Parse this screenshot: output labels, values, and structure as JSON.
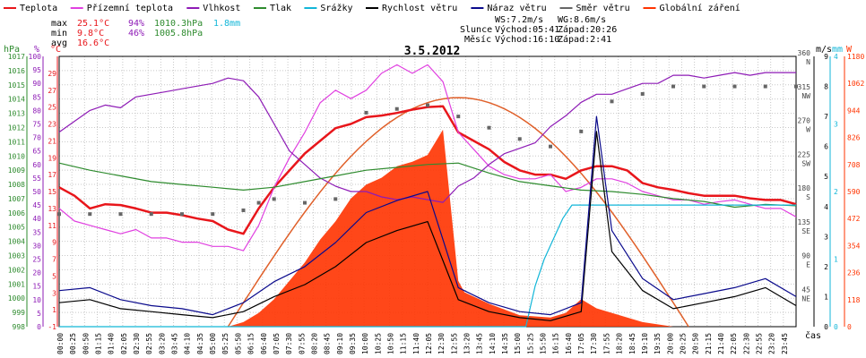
{
  "legend": [
    {
      "label": "Teplota",
      "color": "#e8161b"
    },
    {
      "label": "Přízemní teplota",
      "color": "#e040e0"
    },
    {
      "label": "Vlhkost",
      "color": "#8e1bb6"
    },
    {
      "label": "Tlak",
      "color": "#2e8b2e"
    },
    {
      "label": "Srážky",
      "color": "#12b6d8"
    },
    {
      "label": "Rychlost větru",
      "color": "#000000"
    },
    {
      "label": "Náraz větru",
      "color": "#0a0a8c"
    },
    {
      "label": "Směr větru",
      "color": "#666666"
    },
    {
      "label": "Globální záření",
      "color": "#ff3300"
    }
  ],
  "stats": {
    "max_label": "max",
    "max_temp": "25.1°C",
    "max_hum": "94%",
    "max_press": "1010.3hPa",
    "max_rain": "1.8mm",
    "min_label": "min",
    "min_temp": "9.8°C",
    "min_hum": "46%",
    "min_press": "1005.8hPa",
    "avg_label": "avg",
    "avg_temp": "16.6°C"
  },
  "wind_info": {
    "ws": "WS:7.2m/s",
    "wg": "WG:8.6m/s"
  },
  "sun": {
    "label": "Slunce",
    "rise": "Východ:05:41",
    "set": "Západ:20:26"
  },
  "moon": {
    "label": "Měsíc",
    "rise": "Východ:16:10",
    "set": "Západ:2:41"
  },
  "axis_units": {
    "hpa": "hPa",
    "pct": "%",
    "celsius": "°C",
    "ms": "m/s",
    "mm": "mm",
    "w": "W",
    "time": "čas"
  },
  "chart_data": {
    "type": "line",
    "title": "3.5.2012",
    "x_unit": "time of day (hours)",
    "x_range": [
      0,
      24
    ],
    "x_tick_labels": [
      "00:00",
      "00:25",
      "00:50",
      "01:15",
      "01:40",
      "02:05",
      "02:30",
      "02:55",
      "03:20",
      "03:45",
      "04:10",
      "04:35",
      "05:00",
      "05:25",
      "05:50",
      "06:15",
      "06:40",
      "07:05",
      "07:30",
      "07:55",
      "08:20",
      "08:45",
      "09:10",
      "09:35",
      "10:00",
      "10:25",
      "10:50",
      "11:15",
      "11:40",
      "12:05",
      "12:30",
      "12:55",
      "13:20",
      "13:45",
      "14:10",
      "14:35",
      "15:00",
      "15:25",
      "15:50",
      "16:15",
      "16:40",
      "17:05",
      "17:30",
      "17:55",
      "18:20",
      "18:45",
      "19:10",
      "19:35",
      "20:00",
      "20:25",
      "20:50",
      "21:15",
      "21:40",
      "22:05",
      "22:30",
      "22:55",
      "23:20",
      "23:45"
    ],
    "axes": {
      "pressure_hpa": {
        "min": 998,
        "max": 1017,
        "ticks": [
          998,
          999,
          1000,
          1001,
          1002,
          1003,
          1004,
          1005,
          1006,
          1007,
          1008,
          1009,
          1010,
          1011,
          1012,
          1013,
          1014,
          1015,
          1016,
          1017
        ]
      },
      "humidity_pct": {
        "min": 0,
        "max": 100,
        "ticks": [
          0,
          5,
          10,
          15,
          20,
          25,
          30,
          35,
          40,
          45,
          50,
          55,
          60,
          65,
          70,
          75,
          80,
          85,
          90,
          95,
          100
        ]
      },
      "temperature_c": {
        "min": -1,
        "max": 31,
        "ticks": [
          -1,
          1,
          3,
          5,
          7,
          9,
          11,
          13,
          15,
          17,
          19,
          21,
          23,
          25,
          27,
          29
        ]
      },
      "wind_dir_deg": {
        "ticks": [
          0,
          45,
          90,
          135,
          180,
          225,
          270,
          315,
          360
        ],
        "labels": [
          "",
          "NE",
          "E",
          "SE",
          "S",
          "SW",
          "W",
          "NW",
          "N"
        ]
      },
      "wind_ms": {
        "min": 0,
        "max": 9,
        "ticks": [
          0,
          1,
          2,
          3,
          4,
          5,
          6,
          7,
          8,
          9
        ]
      },
      "rain_mm": {
        "min": 0,
        "max": 4,
        "ticks": [
          0,
          1,
          2,
          3,
          4
        ]
      },
      "radiation_w": {
        "min": 0,
        "max": 1180,
        "ticks": [
          0,
          118,
          236,
          354,
          472,
          590,
          708,
          826,
          944,
          1062,
          1180
        ]
      }
    },
    "series": [
      {
        "name": "Teplota",
        "axis": "temperature_c",
        "color": "#e8161b",
        "x": [
          0,
          0.5,
          1,
          1.5,
          2,
          2.5,
          3,
          3.5,
          4,
          4.5,
          5,
          5.5,
          6,
          6.5,
          7,
          7.5,
          8,
          8.5,
          9,
          9.5,
          10,
          10.5,
          11,
          11.5,
          12,
          12.5,
          13,
          13.5,
          14,
          14.5,
          15,
          15.5,
          16,
          16.5,
          17,
          17.5,
          18,
          18.5,
          19,
          19.5,
          20,
          20.5,
          21,
          21.5,
          22,
          22.5,
          23,
          23.5,
          24
        ],
        "y": [
          15.5,
          14.5,
          13,
          13.5,
          13.4,
          13,
          12.5,
          12.5,
          12.2,
          11.8,
          11.5,
          10.5,
          10,
          13,
          15.5,
          17.5,
          19.5,
          21,
          22.5,
          23,
          23.8,
          24,
          24.3,
          24.7,
          25,
          25.1,
          22,
          21,
          20,
          18.5,
          17.5,
          17,
          17,
          16.5,
          17.5,
          18,
          18,
          17.5,
          16,
          15.5,
          15.2,
          14.8,
          14.5,
          14.5,
          14.5,
          14.2,
          14,
          14,
          13.5
        ]
      },
      {
        "name": "Přízemní teplota",
        "axis": "temperature_c",
        "color": "#e040e0",
        "x": [
          0,
          0.5,
          1,
          1.5,
          2,
          2.5,
          3,
          3.5,
          4,
          4.5,
          5,
          5.5,
          6,
          6.5,
          7,
          7.5,
          8,
          8.5,
          9,
          9.5,
          10,
          10.5,
          11,
          11.5,
          12,
          12.5,
          13,
          13.5,
          14,
          14.5,
          15,
          15.5,
          16,
          16.5,
          17,
          17.5,
          18,
          18.5,
          19,
          19.5,
          20,
          20.5,
          21,
          21.5,
          22,
          22.5,
          23,
          23.5,
          24
        ],
        "y": [
          13,
          11.5,
          11,
          10.5,
          10,
          10.5,
          9.5,
          9.5,
          9,
          9,
          8.5,
          8.5,
          8,
          11,
          15.5,
          19,
          22,
          25.5,
          27,
          26,
          27,
          29,
          30,
          29,
          30,
          28,
          22,
          20,
          18,
          17,
          16.5,
          16.5,
          17,
          15,
          15.5,
          16.5,
          16.5,
          16,
          15,
          14.5,
          14,
          14,
          13.5,
          13.8,
          14,
          13.5,
          13,
          13,
          12
        ]
      },
      {
        "name": "Vlhkost",
        "axis": "humidity_pct",
        "color": "#8e1bb6",
        "x": [
          0,
          0.5,
          1,
          1.5,
          2,
          2.5,
          3,
          3.5,
          4,
          4.5,
          5,
          5.5,
          6,
          6.5,
          7,
          7.5,
          8,
          8.5,
          9,
          9.5,
          10,
          10.5,
          11,
          11.5,
          12,
          12.5,
          13,
          13.5,
          14,
          14.5,
          15,
          15.5,
          16,
          16.5,
          17,
          17.5,
          18,
          18.5,
          19,
          19.5,
          20,
          20.5,
          21,
          21.5,
          22,
          22.5,
          23,
          23.5,
          24
        ],
        "y": [
          72,
          76,
          80,
          82,
          81,
          85,
          86,
          87,
          88,
          89,
          90,
          92,
          91,
          85,
          75,
          65,
          60,
          55,
          52,
          50,
          50,
          48,
          47,
          48,
          47,
          46,
          52,
          55,
          60,
          64,
          66,
          68,
          74,
          78,
          83,
          86,
          86,
          88,
          90,
          90,
          93,
          93,
          92,
          93,
          94,
          93,
          94,
          94,
          94
        ]
      },
      {
        "name": "Tlak",
        "axis": "pressure_hpa",
        "color": "#2e8b2e",
        "x": [
          0,
          1,
          2,
          3,
          4,
          5,
          6,
          7,
          8,
          9,
          10,
          11,
          12,
          13,
          14,
          15,
          16,
          17,
          18,
          19,
          20,
          21,
          22,
          23,
          24
        ],
        "y": [
          1009.5,
          1009,
          1008.6,
          1008.2,
          1008,
          1007.8,
          1007.6,
          1007.8,
          1008.2,
          1008.6,
          1009,
          1009.2,
          1009.4,
          1009.5,
          1008.8,
          1008.2,
          1007.9,
          1007.6,
          1007.5,
          1007.3,
          1007,
          1006.8,
          1006.4,
          1006.6,
          1006.5
        ]
      },
      {
        "name": "Srážky",
        "axis": "rain_mm",
        "color": "#12b6d8",
        "x": [
          0,
          15.2,
          15.5,
          15.8,
          16.1,
          16.4,
          16.7,
          17,
          17.5,
          18,
          20,
          24
        ],
        "y": [
          0,
          0,
          0.6,
          1.0,
          1.3,
          1.6,
          1.8,
          1.8,
          1.8,
          1.8,
          1.8,
          1.8
        ]
      },
      {
        "name": "Rychlost větru",
        "axis": "wind_ms",
        "color": "#000000",
        "x": [
          0,
          1,
          2,
          3,
          4,
          5,
          6,
          7,
          8,
          9,
          10,
          11,
          12,
          13,
          14,
          15,
          16,
          17,
          17.5,
          18,
          19,
          20,
          21,
          22,
          23,
          24
        ],
        "y": [
          0.8,
          0.9,
          0.6,
          0.5,
          0.4,
          0.3,
          0.5,
          1.0,
          1.4,
          2.0,
          2.8,
          3.2,
          3.5,
          0.9,
          0.5,
          0.3,
          0.2,
          0.5,
          6.5,
          2.5,
          1.2,
          0.6,
          0.8,
          1.0,
          1.3,
          0.7
        ]
      },
      {
        "name": "Náraz větru",
        "axis": "wind_ms",
        "color": "#0a0a8c",
        "x": [
          0,
          1,
          2,
          3,
          4,
          5,
          6,
          7,
          8,
          9,
          10,
          11,
          12,
          13,
          14,
          15,
          16,
          17,
          17.5,
          18,
          19,
          20,
          21,
          22,
          23,
          24
        ],
        "y": [
          1.2,
          1.3,
          0.9,
          0.7,
          0.6,
          0.4,
          0.8,
          1.5,
          2.0,
          2.8,
          3.8,
          4.2,
          4.5,
          1.3,
          0.8,
          0.5,
          0.4,
          0.8,
          7.0,
          3.2,
          1.6,
          0.9,
          1.1,
          1.3,
          1.6,
          1.0
        ]
      },
      {
        "name": "Směr větru",
        "axis": "wind_dir_deg",
        "color": "#666666",
        "x": [
          0,
          1,
          2,
          3,
          4,
          5,
          6,
          6.5,
          7,
          8,
          9,
          10,
          11,
          12,
          13,
          14,
          15,
          16,
          17,
          18,
          19,
          20,
          21,
          22,
          23,
          24
        ],
        "y": [
          150,
          150,
          150,
          150,
          150,
          150,
          155,
          165,
          170,
          165,
          170,
          285,
          290,
          295,
          280,
          265,
          250,
          240,
          260,
          300,
          310,
          320,
          320,
          320,
          320,
          320
        ]
      },
      {
        "name": "Globální záření",
        "axis": "radiation_w",
        "color": "#ff3300",
        "x": [
          0,
          5.5,
          6,
          6.5,
          7,
          7.5,
          8,
          8.5,
          9,
          9.5,
          10,
          10.5,
          11,
          11.5,
          12,
          12.5,
          13,
          13.2,
          14,
          15,
          16,
          16.5,
          17,
          17.5,
          18,
          18.5,
          19,
          20,
          24
        ],
        "y": [
          0,
          0,
          20,
          60,
          120,
          200,
          280,
          380,
          460,
          560,
          620,
          650,
          700,
          720,
          750,
          860,
          200,
          150,
          100,
          50,
          40,
          60,
          120,
          80,
          60,
          40,
          20,
          0,
          0
        ]
      }
    ],
    "annotations": {
      "clear_sky_radiation_peak_w": 1000
    }
  }
}
